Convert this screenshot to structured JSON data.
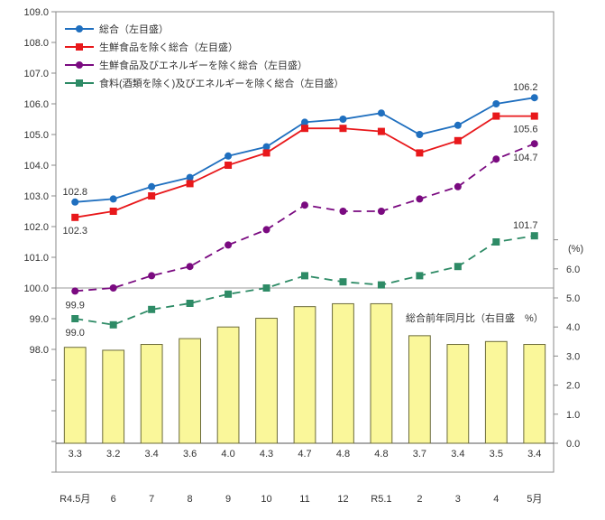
{
  "chart_data": {
    "type": "line",
    "categories": [
      "R4.5月",
      "6",
      "7",
      "8",
      "9",
      "10",
      "11",
      "12",
      "R5.1",
      "2",
      "3",
      "4",
      "5月"
    ],
    "left_axis": {
      "ylim": [
        94,
        109
      ],
      "ticks": [
        "109.0",
        "108.0",
        "107.0",
        "106.0",
        "105.0",
        "104.0",
        "103.0",
        "102.0",
        "101.0",
        "100.0",
        "99.0",
        "98.0"
      ]
    },
    "right_axis": {
      "ylim": [
        0,
        7
      ],
      "label": "(%)",
      "ticks": [
        "0.0",
        "1.0",
        "2.0",
        "3.0",
        "4.0",
        "5.0",
        "6.0"
      ]
    },
    "series": [
      {
        "name": "総合（左目盛）",
        "color": "#1f6fbf",
        "marker": "circle",
        "dash": false,
        "values": [
          102.8,
          102.9,
          103.3,
          103.6,
          104.3,
          104.6,
          105.4,
          105.5,
          105.7,
          105.0,
          105.3,
          106.0,
          106.2
        ]
      },
      {
        "name": "生鮮食品を除く総合（左目盛）",
        "color": "#e8181b",
        "marker": "square",
        "dash": false,
        "values": [
          102.3,
          102.5,
          103.0,
          103.4,
          104.0,
          104.4,
          105.2,
          105.2,
          105.1,
          104.4,
          104.8,
          105.6,
          105.6
        ]
      },
      {
        "name": "生鮮食品及びエネルギーを除く総合（左目盛）",
        "color": "#7a0a80",
        "marker": "circle",
        "dash": true,
        "values": [
          99.9,
          100.0,
          100.4,
          100.7,
          101.4,
          101.9,
          102.7,
          102.5,
          102.5,
          102.9,
          103.3,
          104.2,
          104.7
        ]
      },
      {
        "name": "食料(酒類を除く)及びエネルギーを除く総合（左目盛）",
        "color": "#2e8b66",
        "marker": "square",
        "dash": true,
        "values": [
          99.0,
          98.8,
          99.3,
          99.5,
          99.8,
          100.0,
          100.4,
          100.2,
          100.1,
          100.4,
          100.7,
          101.5,
          101.7
        ]
      }
    ],
    "bars": {
      "name": "総合前年同月比（右目盛　%）",
      "color": "#faf79a",
      "values": [
        3.3,
        3.2,
        3.4,
        3.6,
        4.0,
        4.3,
        4.7,
        4.8,
        4.8,
        3.7,
        3.4,
        3.5,
        3.4
      ],
      "labels": [
        "3.3",
        "3.2",
        "3.4",
        "3.6",
        "4.0",
        "4.3",
        "4.7",
        "4.8",
        "4.8",
        "3.7",
        "3.4",
        "3.5",
        "3.4"
      ]
    },
    "annotations": [
      "102.8",
      "102.3",
      "99.9",
      "99.0",
      "106.2",
      "105.6",
      "104.7",
      "101.7"
    ]
  }
}
